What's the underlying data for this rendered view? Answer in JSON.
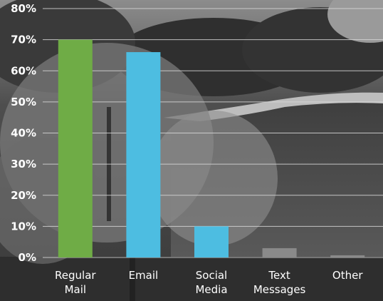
{
  "chart_data": {
    "type": "bar",
    "categories": [
      [
        "Regular",
        "Mail"
      ],
      [
        "Email"
      ],
      [
        "Social",
        "Media"
      ],
      [
        "Text",
        "Messages"
      ],
      [
        "Other"
      ]
    ],
    "values": [
      70,
      66,
      10,
      3,
      0.7
    ],
    "bar_colors": [
      "#6fac46",
      "#4dbde1",
      "#4dbde1",
      "#8a8a8a",
      "#8a8a8a"
    ],
    "y_ticks": [
      "0%",
      "10%",
      "20%",
      "30%",
      "40%",
      "50%",
      "60%",
      "70%",
      "80%"
    ],
    "ylim": [
      0,
      80
    ],
    "grid": true,
    "background": "grayscale photo of a park with trees and a lake",
    "title": "",
    "xlabel": "",
    "ylabel": ""
  }
}
